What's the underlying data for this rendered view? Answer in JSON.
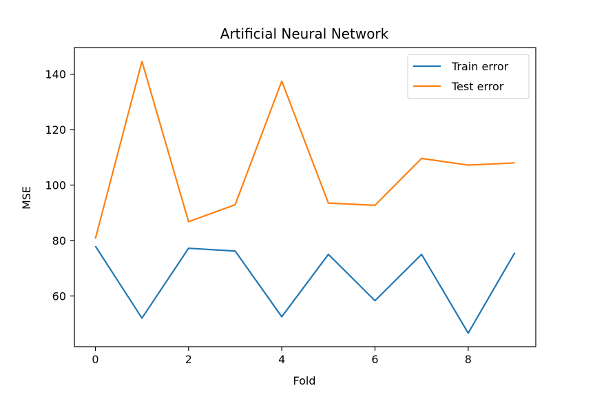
{
  "chart_data": {
    "type": "line",
    "title": "Artificial Neural Network",
    "xlabel": "Fold",
    "ylabel": "MSE",
    "xlim": [
      -0.45,
      9.45
    ],
    "ylim": [
      41.7,
      149.6
    ],
    "x_ticks": [
      0,
      2,
      4,
      6,
      8
    ],
    "y_ticks": [
      60,
      80,
      100,
      120,
      140
    ],
    "x": [
      0,
      1,
      2,
      3,
      4,
      5,
      6,
      7,
      8,
      9
    ],
    "series": [
      {
        "name": "Train error",
        "color": "#1f77b4",
        "values": [
          78.0,
          52.0,
          77.2,
          76.2,
          52.5,
          75.0,
          58.3,
          75.0,
          46.6,
          75.6
        ]
      },
      {
        "name": "Test error",
        "color": "#ff7f0e",
        "values": [
          80.6,
          144.6,
          86.8,
          92.9,
          137.5,
          93.5,
          92.7,
          109.6,
          107.2,
          108.0
        ]
      }
    ],
    "legend_position": "top-right",
    "grid": false
  }
}
